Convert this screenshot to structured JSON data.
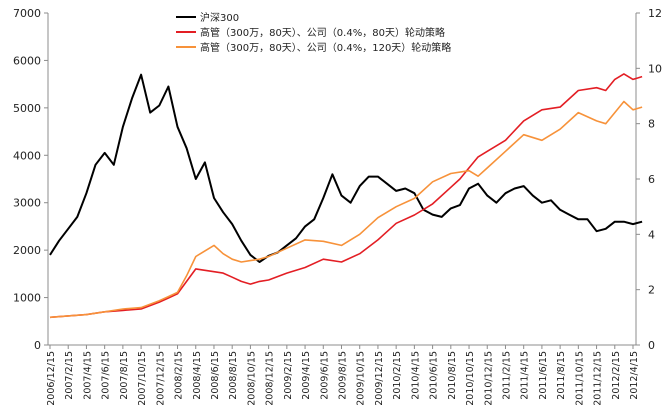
{
  "chart_data": {
    "type": "line",
    "title": "",
    "xlabel": "",
    "ylabel": "",
    "y_left_lim": [
      0,
      7000
    ],
    "y_left_ticks": [
      "0",
      "1000",
      "2000",
      "3000",
      "4000",
      "5000",
      "6000",
      "7000"
    ],
    "y_right_lim": [
      0,
      12
    ],
    "y_right_ticks": [
      "0",
      "2",
      "4",
      "6",
      "8",
      "10",
      "12"
    ],
    "x_tick_labels": [
      "2006/12/15",
      "2007/2/15",
      "2007/4/15",
      "2007/6/15",
      "2007/8/15",
      "2007/10/15",
      "2007/12/15",
      "2008/2/15",
      "2008/4/15",
      "2008/6/15",
      "2008/8/15",
      "2008/10/15",
      "2008/12/15",
      "2009/2/15",
      "2009/4/15",
      "2009/6/15",
      "2009/8/15",
      "2009/10/15",
      "2009/12/15",
      "2010/2/15",
      "2010/4/15",
      "2010/6/15",
      "2010/8/15",
      "2010/10/15",
      "2010/12/15",
      "2011/2/15",
      "2011/4/15",
      "2011/6/15",
      "2011/8/15",
      "2011/10/15",
      "2011/12/15",
      "2012/2/15",
      "2012/4/15"
    ],
    "grid": false,
    "legend_position": "top-center",
    "series": [
      {
        "name": "沪深300",
        "axis": "left",
        "color": "#000000",
        "points": [
          [
            "2006-12-15",
            1900
          ],
          [
            "2007-01-15",
            2200
          ],
          [
            "2007-02-15",
            2450
          ],
          [
            "2007-03-15",
            2700
          ],
          [
            "2007-04-15",
            3200
          ],
          [
            "2007-05-15",
            3800
          ],
          [
            "2007-06-15",
            4050
          ],
          [
            "2007-07-15",
            3800
          ],
          [
            "2007-08-15",
            4600
          ],
          [
            "2007-09-15",
            5200
          ],
          [
            "2007-10-15",
            5700
          ],
          [
            "2007-11-15",
            4900
          ],
          [
            "2007-12-15",
            5050
          ],
          [
            "2008-01-15",
            5450
          ],
          [
            "2008-02-15",
            4600
          ],
          [
            "2008-03-15",
            4150
          ],
          [
            "2008-04-15",
            3500
          ],
          [
            "2008-05-15",
            3850
          ],
          [
            "2008-06-15",
            3100
          ],
          [
            "2008-07-15",
            2800
          ],
          [
            "2008-08-15",
            2550
          ],
          [
            "2008-09-15",
            2200
          ],
          [
            "2008-10-15",
            1900
          ],
          [
            "2008-11-15",
            1750
          ],
          [
            "2008-12-15",
            1880
          ],
          [
            "2009-01-15",
            1950
          ],
          [
            "2009-02-15",
            2100
          ],
          [
            "2009-03-15",
            2250
          ],
          [
            "2009-04-15",
            2500
          ],
          [
            "2009-05-15",
            2650
          ],
          [
            "2009-06-15",
            3100
          ],
          [
            "2009-07-15",
            3600
          ],
          [
            "2009-08-15",
            3150
          ],
          [
            "2009-09-15",
            3000
          ],
          [
            "2009-10-15",
            3350
          ],
          [
            "2009-11-15",
            3550
          ],
          [
            "2009-12-15",
            3550
          ],
          [
            "2010-01-15",
            3400
          ],
          [
            "2010-02-15",
            3250
          ],
          [
            "2010-03-15",
            3300
          ],
          [
            "2010-04-15",
            3200
          ],
          [
            "2010-05-15",
            2850
          ],
          [
            "2010-06-15",
            2750
          ],
          [
            "2010-07-15",
            2700
          ],
          [
            "2010-08-15",
            2880
          ],
          [
            "2010-09-15",
            2950
          ],
          [
            "2010-10-15",
            3300
          ],
          [
            "2010-11-15",
            3400
          ],
          [
            "2010-12-15",
            3150
          ],
          [
            "2011-01-15",
            3000
          ],
          [
            "2011-02-15",
            3200
          ],
          [
            "2011-03-15",
            3300
          ],
          [
            "2011-04-15",
            3350
          ],
          [
            "2011-05-15",
            3150
          ],
          [
            "2011-06-15",
            3000
          ],
          [
            "2011-07-15",
            3050
          ],
          [
            "2011-08-15",
            2850
          ],
          [
            "2011-09-15",
            2750
          ],
          [
            "2011-10-15",
            2650
          ],
          [
            "2011-11-15",
            2650
          ],
          [
            "2011-12-15",
            2400
          ],
          [
            "2012-01-15",
            2450
          ],
          [
            "2012-02-15",
            2600
          ],
          [
            "2012-03-15",
            2600
          ],
          [
            "2012-04-15",
            2550
          ],
          [
            "2012-05-15",
            2600
          ]
        ]
      },
      {
        "name": "高管（300万，80天）、公司（0.4%，80天）轮动策略",
        "axis": "right",
        "color": "#e31e24",
        "points": [
          [
            "2006-12-15",
            1.0
          ],
          [
            "2007-02-15",
            1.05
          ],
          [
            "2007-04-15",
            1.1
          ],
          [
            "2007-06-15",
            1.2
          ],
          [
            "2007-08-15",
            1.25
          ],
          [
            "2007-10-15",
            1.3
          ],
          [
            "2007-12-15",
            1.55
          ],
          [
            "2008-01-15",
            1.7
          ],
          [
            "2008-02-15",
            1.85
          ],
          [
            "2008-03-15",
            2.3
          ],
          [
            "2008-04-15",
            2.75
          ],
          [
            "2008-05-15",
            2.7
          ],
          [
            "2008-06-15",
            2.65
          ],
          [
            "2008-07-15",
            2.6
          ],
          [
            "2008-08-15",
            2.45
          ],
          [
            "2008-09-15",
            2.3
          ],
          [
            "2008-10-15",
            2.2
          ],
          [
            "2008-11-15",
            2.3
          ],
          [
            "2008-12-15",
            2.35
          ],
          [
            "2009-02-15",
            2.6
          ],
          [
            "2009-04-15",
            2.8
          ],
          [
            "2009-06-15",
            3.1
          ],
          [
            "2009-08-15",
            3.0
          ],
          [
            "2009-10-15",
            3.3
          ],
          [
            "2009-12-15",
            3.8
          ],
          [
            "2010-02-15",
            4.4
          ],
          [
            "2010-04-15",
            4.7
          ],
          [
            "2010-06-15",
            5.1
          ],
          [
            "2010-08-15",
            5.7
          ],
          [
            "2010-09-15",
            6.0
          ],
          [
            "2010-10-15",
            6.4
          ],
          [
            "2010-11-15",
            6.8
          ],
          [
            "2010-12-15",
            7.0
          ],
          [
            "2011-02-15",
            7.4
          ],
          [
            "2011-04-15",
            8.1
          ],
          [
            "2011-06-15",
            8.5
          ],
          [
            "2011-08-15",
            8.6
          ],
          [
            "2011-10-15",
            9.2
          ],
          [
            "2011-12-15",
            9.3
          ],
          [
            "2012-01-15",
            9.2
          ],
          [
            "2012-02-15",
            9.6
          ],
          [
            "2012-03-15",
            9.8
          ],
          [
            "2012-04-15",
            9.6
          ],
          [
            "2012-05-15",
            9.7
          ]
        ]
      },
      {
        "name": "高管（300万，80天）、公司（0.4%，120天）轮动策略",
        "axis": "right",
        "color": "#f7923a",
        "points": [
          [
            "2006-12-15",
            1.0
          ],
          [
            "2007-02-15",
            1.05
          ],
          [
            "2007-04-15",
            1.1
          ],
          [
            "2007-06-15",
            1.2
          ],
          [
            "2007-08-15",
            1.3
          ],
          [
            "2007-10-15",
            1.35
          ],
          [
            "2007-12-15",
            1.6
          ],
          [
            "2008-01-15",
            1.75
          ],
          [
            "2008-02-15",
            1.9
          ],
          [
            "2008-03-15",
            2.5
          ],
          [
            "2008-04-15",
            3.2
          ],
          [
            "2008-05-15",
            3.4
          ],
          [
            "2008-06-15",
            3.6
          ],
          [
            "2008-07-15",
            3.3
          ],
          [
            "2008-08-15",
            3.1
          ],
          [
            "2008-09-15",
            3.0
          ],
          [
            "2008-10-15",
            3.05
          ],
          [
            "2008-11-15",
            3.1
          ],
          [
            "2008-12-15",
            3.2
          ],
          [
            "2009-02-15",
            3.5
          ],
          [
            "2009-04-15",
            3.8
          ],
          [
            "2009-06-15",
            3.75
          ],
          [
            "2009-08-15",
            3.6
          ],
          [
            "2009-10-15",
            4.0
          ],
          [
            "2009-12-15",
            4.6
          ],
          [
            "2010-02-15",
            5.0
          ],
          [
            "2010-04-15",
            5.3
          ],
          [
            "2010-06-15",
            5.9
          ],
          [
            "2010-08-15",
            6.2
          ],
          [
            "2010-10-15",
            6.3
          ],
          [
            "2010-11-15",
            6.1
          ],
          [
            "2010-12-15",
            6.4
          ],
          [
            "2011-02-15",
            7.0
          ],
          [
            "2011-04-15",
            7.6
          ],
          [
            "2011-06-15",
            7.4
          ],
          [
            "2011-08-15",
            7.8
          ],
          [
            "2011-10-15",
            8.4
          ],
          [
            "2011-12-15",
            8.1
          ],
          [
            "2012-01-15",
            8.0
          ],
          [
            "2012-02-15",
            8.4
          ],
          [
            "2012-03-15",
            8.8
          ],
          [
            "2012-04-15",
            8.5
          ],
          [
            "2012-05-15",
            8.6
          ]
        ]
      }
    ]
  }
}
